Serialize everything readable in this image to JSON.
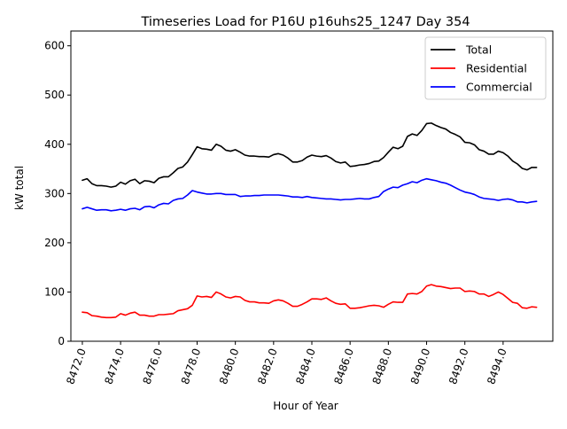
{
  "chart_data": {
    "type": "line",
    "title": "Timeseries Load for P16U p16uhs25_1247  Day 354",
    "xlabel": "Hour of Year",
    "ylabel": "kW total",
    "xlim": [
      8471.4,
      8496.6
    ],
    "ylim": [
      0,
      630
    ],
    "xticks": [
      8472,
      8474,
      8476,
      8478,
      8480,
      8482,
      8484,
      8486,
      8488,
      8490,
      8492,
      8494
    ],
    "xtick_labels": [
      "8472.0",
      "8474.0",
      "8476.0",
      "8478.0",
      "8480.0",
      "8482.0",
      "8484.0",
      "8486.0",
      "8488.0",
      "8490.0",
      "8492.0",
      "8494.0"
    ],
    "yticks": [
      0,
      100,
      200,
      300,
      400,
      500,
      600
    ],
    "ytick_labels": [
      "0",
      "100",
      "200",
      "300",
      "400",
      "500",
      "600"
    ],
    "grid": false,
    "legend_position": "top-right",
    "x_start": 8472.0,
    "x_step": 0.25,
    "series": [
      {
        "name": "Total",
        "color": "#000000",
        "values": [
          327,
          330,
          320,
          316,
          316,
          315,
          313,
          315,
          323,
          319,
          326,
          329,
          320,
          326,
          325,
          322,
          331,
          334,
          334,
          342,
          351,
          354,
          364,
          379,
          395,
          391,
          390,
          388,
          400,
          396,
          388,
          386,
          389,
          384,
          378,
          376,
          376,
          375,
          375,
          374,
          379,
          381,
          378,
          372,
          364,
          364,
          367,
          374,
          378,
          376,
          375,
          377,
          372,
          365,
          362,
          364,
          355,
          356,
          358,
          359,
          361,
          365,
          366,
          373,
          384,
          394,
          391,
          396,
          416,
          421,
          418,
          428,
          442,
          443,
          438,
          434,
          431,
          424,
          420,
          415,
          404,
          403,
          399,
          389,
          386,
          380,
          380,
          386,
          383,
          376,
          366,
          360,
          351,
          348,
          353,
          353
        ]
      },
      {
        "name": "Residential",
        "color": "#ff0000",
        "values": [
          59,
          58,
          52,
          51,
          49,
          48,
          48,
          49,
          56,
          53,
          57,
          59,
          53,
          53,
          51,
          51,
          54,
          54,
          55,
          56,
          62,
          64,
          66,
          73,
          92,
          90,
          91,
          89,
          100,
          96,
          90,
          88,
          91,
          90,
          83,
          80,
          80,
          78,
          78,
          77,
          82,
          84,
          82,
          77,
          71,
          71,
          75,
          80,
          86,
          86,
          85,
          88,
          82,
          77,
          75,
          76,
          67,
          67,
          68,
          70,
          72,
          73,
          72,
          69,
          75,
          80,
          79,
          79,
          96,
          97,
          96,
          101,
          112,
          115,
          112,
          111,
          109,
          107,
          108,
          108,
          101,
          102,
          101,
          96,
          96,
          91,
          95,
          100,
          95,
          87,
          79,
          77,
          68,
          67,
          70,
          69
        ]
      },
      {
        "name": "Commercial",
        "color": "#0000ff",
        "values": [
          269,
          272,
          269,
          266,
          267,
          267,
          265,
          266,
          268,
          266,
          269,
          270,
          267,
          273,
          274,
          271,
          277,
          280,
          279,
          286,
          289,
          290,
          297,
          306,
          303,
          301,
          299,
          299,
          300,
          300,
          298,
          298,
          298,
          294,
          295,
          295,
          296,
          296,
          297,
          297,
          297,
          297,
          296,
          295,
          293,
          293,
          292,
          294,
          292,
          291,
          290,
          289,
          289,
          288,
          287,
          288,
          288,
          289,
          290,
          289,
          289,
          292,
          294,
          304,
          309,
          313,
          312,
          317,
          320,
          324,
          322,
          327,
          330,
          328,
          326,
          323,
          321,
          317,
          312,
          307,
          303,
          301,
          298,
          293,
          290,
          289,
          288,
          286,
          288,
          289,
          287,
          283,
          283,
          281,
          283,
          284
        ]
      }
    ]
  }
}
